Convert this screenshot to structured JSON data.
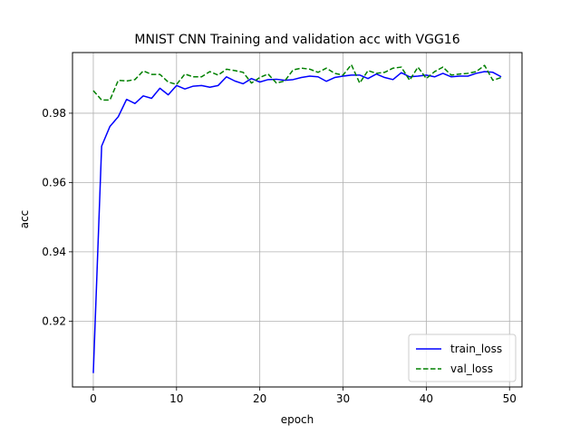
{
  "chart_data": {
    "type": "line",
    "title": "MNIST CNN Training and validation acc with VGG16",
    "xlabel": "epoch",
    "ylabel": "acc",
    "xlim": [
      -2.5,
      51.5
    ],
    "ylim": [
      0.901,
      0.9975
    ],
    "x_ticks": [
      0,
      10,
      20,
      30,
      40,
      50
    ],
    "y_ticks": [
      0.92,
      0.94,
      0.96,
      0.98
    ],
    "y_tick_labels": [
      "0.92",
      "0.94",
      "0.96",
      "0.98"
    ],
    "grid": true,
    "legend_position": "lower-right",
    "x": [
      0,
      1,
      2,
      3,
      4,
      5,
      6,
      7,
      8,
      9,
      10,
      11,
      12,
      13,
      14,
      15,
      16,
      17,
      18,
      19,
      20,
      21,
      22,
      23,
      24,
      25,
      26,
      27,
      28,
      29,
      30,
      31,
      32,
      33,
      34,
      35,
      36,
      37,
      38,
      39,
      40,
      41,
      42,
      43,
      44,
      45,
      46,
      47,
      48,
      49
    ],
    "series": [
      {
        "name": "train_loss",
        "color": "#0000ff",
        "style": "solid",
        "values": [
          0.905,
          0.9705,
          0.9762,
          0.979,
          0.984,
          0.9828,
          0.985,
          0.9843,
          0.9872,
          0.9853,
          0.988,
          0.987,
          0.9878,
          0.988,
          0.9875,
          0.988,
          0.9905,
          0.9893,
          0.9885,
          0.99,
          0.989,
          0.9897,
          0.9898,
          0.9895,
          0.9897,
          0.9903,
          0.9907,
          0.9905,
          0.9892,
          0.9903,
          0.9907,
          0.991,
          0.991,
          0.99,
          0.9913,
          0.9903,
          0.9897,
          0.9917,
          0.9905,
          0.9907,
          0.991,
          0.9905,
          0.9915,
          0.9905,
          0.9907,
          0.9907,
          0.9915,
          0.992,
          0.9918,
          0.9905
        ]
      },
      {
        "name": "val_loss",
        "color": "#008000",
        "style": "dashed",
        "values": [
          0.9865,
          0.9838,
          0.9838,
          0.9895,
          0.9893,
          0.9897,
          0.9922,
          0.9912,
          0.9912,
          0.989,
          0.9883,
          0.9913,
          0.9905,
          0.9905,
          0.992,
          0.991,
          0.9927,
          0.9923,
          0.9918,
          0.9887,
          0.9903,
          0.9913,
          0.9887,
          0.9893,
          0.9925,
          0.993,
          0.9927,
          0.9918,
          0.993,
          0.9915,
          0.991,
          0.994,
          0.9887,
          0.9923,
          0.9915,
          0.9918,
          0.993,
          0.9933,
          0.9895,
          0.9933,
          0.99,
          0.992,
          0.9933,
          0.991,
          0.9913,
          0.9915,
          0.992,
          0.9938,
          0.9895,
          0.9903
        ]
      }
    ]
  }
}
